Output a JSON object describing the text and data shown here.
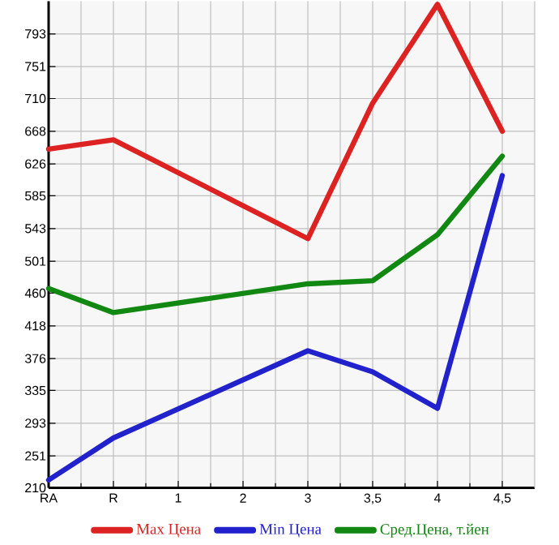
{
  "chart_data": {
    "type": "line",
    "categories": [
      "RA",
      "R",
      "1",
      "2",
      "3",
      "3,5",
      "4",
      "4,5"
    ],
    "series": [
      {
        "name": "Max Цена",
        "color": "#dd2222",
        "values": [
          645,
          657,
          null,
          null,
          530,
          704,
          831,
          668
        ]
      },
      {
        "name": "Min Цена",
        "color": "#2222cc",
        "values": [
          220,
          274,
          null,
          null,
          386,
          359,
          312,
          611
        ]
      },
      {
        "name": "Сред.Цена, т.йен",
        "color": "#118811",
        "values": [
          466,
          435,
          null,
          null,
          472,
          476,
          535,
          636
        ]
      }
    ],
    "ylim": [
      210,
      835
    ],
    "yticks": [
      210,
      251,
      293,
      335,
      376,
      418,
      460,
      501,
      543,
      585,
      626,
      668,
      710,
      751,
      793
    ],
    "grid": true,
    "legend": "bottom"
  }
}
